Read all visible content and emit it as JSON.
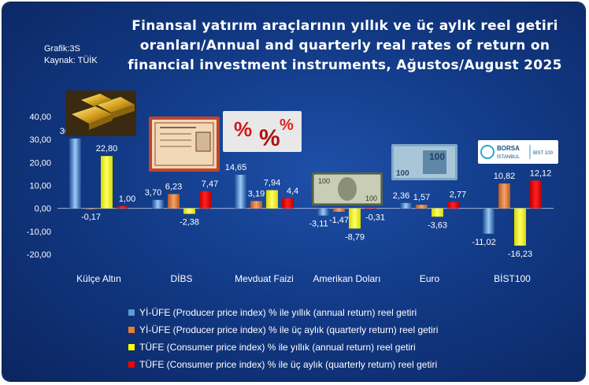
{
  "header": {
    "title": "Finansal yatırım araçlarının yıllık ve üç aylık reel getiri oranları/Annual and quarterly real rates of return on financial investment instruments, Ağustos/August 2025",
    "grafik": "Grafik:3S",
    "kaynak": "Kaynak: TÜİK"
  },
  "images": {
    "gold": "gold-bars-image",
    "dibs": "government-bond-certificate-image",
    "deposit": "percent-symbols-image",
    "dollar": "dollar-banknote-image",
    "euro": "euro-banknote-image",
    "bist": "borsa-istanbul-logo-image",
    "bist_logo_text1": "BORSA",
    "bist_logo_text2": "İSTANBUL",
    "bist_logo_text3": "BİST 100"
  },
  "colors": {
    "background": "#123a86",
    "series1": "#5b9bd5",
    "series2": "#ed7d31",
    "series3": "#ffff00",
    "series4": "#ff0000"
  },
  "chart_data": {
    "type": "bar",
    "categories": [
      "Külçe Altın",
      "DİBS",
      "Mevduat Faizi",
      "Amerikan Doları",
      "Euro",
      "BİST100"
    ],
    "ylim": [
      -20,
      40
    ],
    "yticks": [
      "-20,00",
      "-10,00",
      "0,00",
      "10,00",
      "20,00",
      "30,00",
      "40,00"
    ],
    "ytick_values": [
      -20,
      -10,
      0,
      10,
      20,
      30,
      40
    ],
    "series": [
      {
        "name": "Yİ-ÜFE (Producer price index)  % ile yıllık (annual return) reel getiri",
        "values": [
          30.44,
          3.7,
          14.65,
          -3.11,
          2.36,
          -11.02
        ],
        "labels": [
          "30,44",
          "3,70",
          "14,65",
          "-3,11",
          "2,36",
          "-11,02"
        ]
      },
      {
        "name": "Yİ-ÜFE (Producer price index)  % ile  üç aylık (quarterly return) reel getiri",
        "values": [
          -0.17,
          6.23,
          3.19,
          -1.47,
          1.57,
          10.82
        ],
        "labels": [
          "-0,17",
          "6,23",
          "3,19",
          "-1,47",
          "1,57",
          "10,82"
        ]
      },
      {
        "name": "TÜFE (Consumer price index) % ile  yıllık (annual return) reel getiri",
        "values": [
          22.8,
          -2.38,
          7.94,
          -8.79,
          -3.63,
          -16.23
        ],
        "labels": [
          "22,80",
          "-2,38",
          "7,94",
          "-8,79",
          "-3,63",
          "-16,23"
        ]
      },
      {
        "name": "TÜFE (Consumer price index) % ile  üç aylık (quarterly return) reel getiri",
        "values": [
          1.0,
          7.47,
          4.4,
          -0.31,
          2.77,
          12.12
        ],
        "labels": [
          "1,00",
          "7,47",
          "4,4",
          "-0,31",
          "2,77",
          "12,12"
        ]
      }
    ]
  }
}
